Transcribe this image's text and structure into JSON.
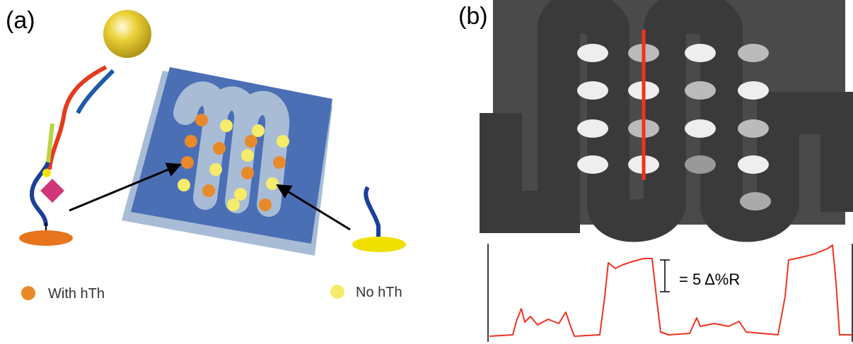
{
  "panel_a": {
    "label": "(a)",
    "legend": [
      "With hTh",
      "No hTh"
    ]
  },
  "panel_b": {
    "label": "(b)",
    "scale_label": "= 5 Δ%R"
  }
}
